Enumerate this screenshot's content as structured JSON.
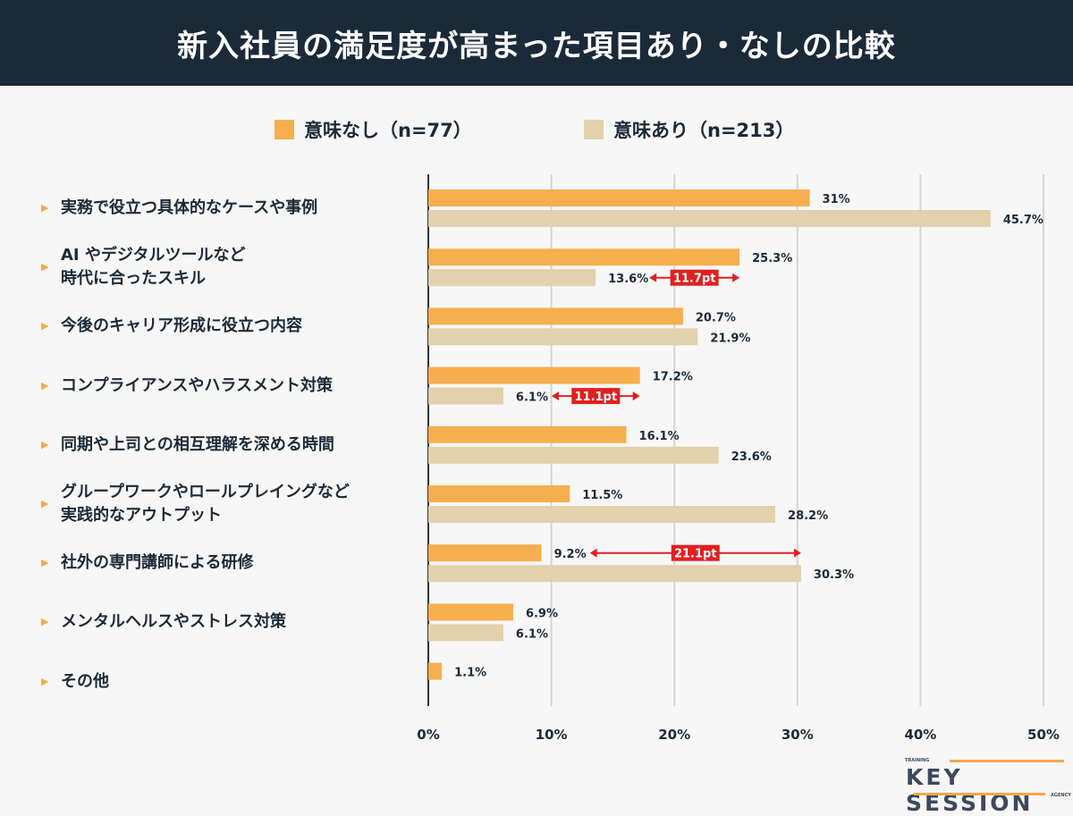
{
  "title": "新入社員の満足度が高まった項目あり・なしの比較",
  "chart_data": {
    "type": "bar",
    "orientation": "horizontal",
    "title": "新入社員の満足度が高まった項目あり・なしの比較",
    "categories": [
      [
        "実務で役立つ具体的なケースや事例"
      ],
      [
        "AI やデジタルツールなど",
        "時代に合ったスキル"
      ],
      [
        "今後のキャリア形成に役立つ内容"
      ],
      [
        "コンプライアンスやハラスメント対策"
      ],
      [
        "同期や上司との相互理解を深める時間"
      ],
      [
        "グループワークやロールプレイングなど",
        "実践的なアウトプット"
      ],
      [
        "社外の専門講師による研修"
      ],
      [
        "メンタルヘルスやストレス対策"
      ],
      [
        "その他"
      ]
    ],
    "series": [
      {
        "name": "意味なし（n=77）",
        "color": "#f7ae4e",
        "values": [
          31,
          25.3,
          20.7,
          17.2,
          16.1,
          11.5,
          9.2,
          6.9,
          1.1
        ],
        "labels": [
          "31%",
          "25.3%",
          "20.7%",
          "17.2%",
          "16.1%",
          "11.5%",
          "9.2%",
          "6.9%",
          "1.1%"
        ]
      },
      {
        "name": "意味あり（n=213）",
        "color": "#e3d0ac",
        "values": [
          45.7,
          13.6,
          21.9,
          6.1,
          23.6,
          28.2,
          30.3,
          6.1,
          null
        ],
        "labels": [
          "45.7%",
          "13.6%",
          "21.9%",
          "6.1%",
          "23.6%",
          "28.2%",
          "30.3%",
          "6.1%",
          ""
        ]
      }
    ],
    "annotations": [
      {
        "category_index": 1,
        "from": 13.6,
        "to": 25.3,
        "label": "11.7pt",
        "level": "series2"
      },
      {
        "category_index": 3,
        "from": 6.1,
        "to": 17.2,
        "label": "11.1pt",
        "level": "series2"
      },
      {
        "category_index": 6,
        "from": 9.2,
        "to": 30.3,
        "label": "21.1pt",
        "level": "series1"
      }
    ],
    "xlim": [
      0,
      50
    ],
    "xticks": [
      "0%",
      "10%",
      "20%",
      "30%",
      "40%",
      "50%"
    ],
    "grid": true,
    "legend": "top-center",
    "annotation_color": "#e02020"
  },
  "logo": {
    "top": "TRAINING",
    "main": "KEY SESSION",
    "bottom": "AGENCY"
  }
}
